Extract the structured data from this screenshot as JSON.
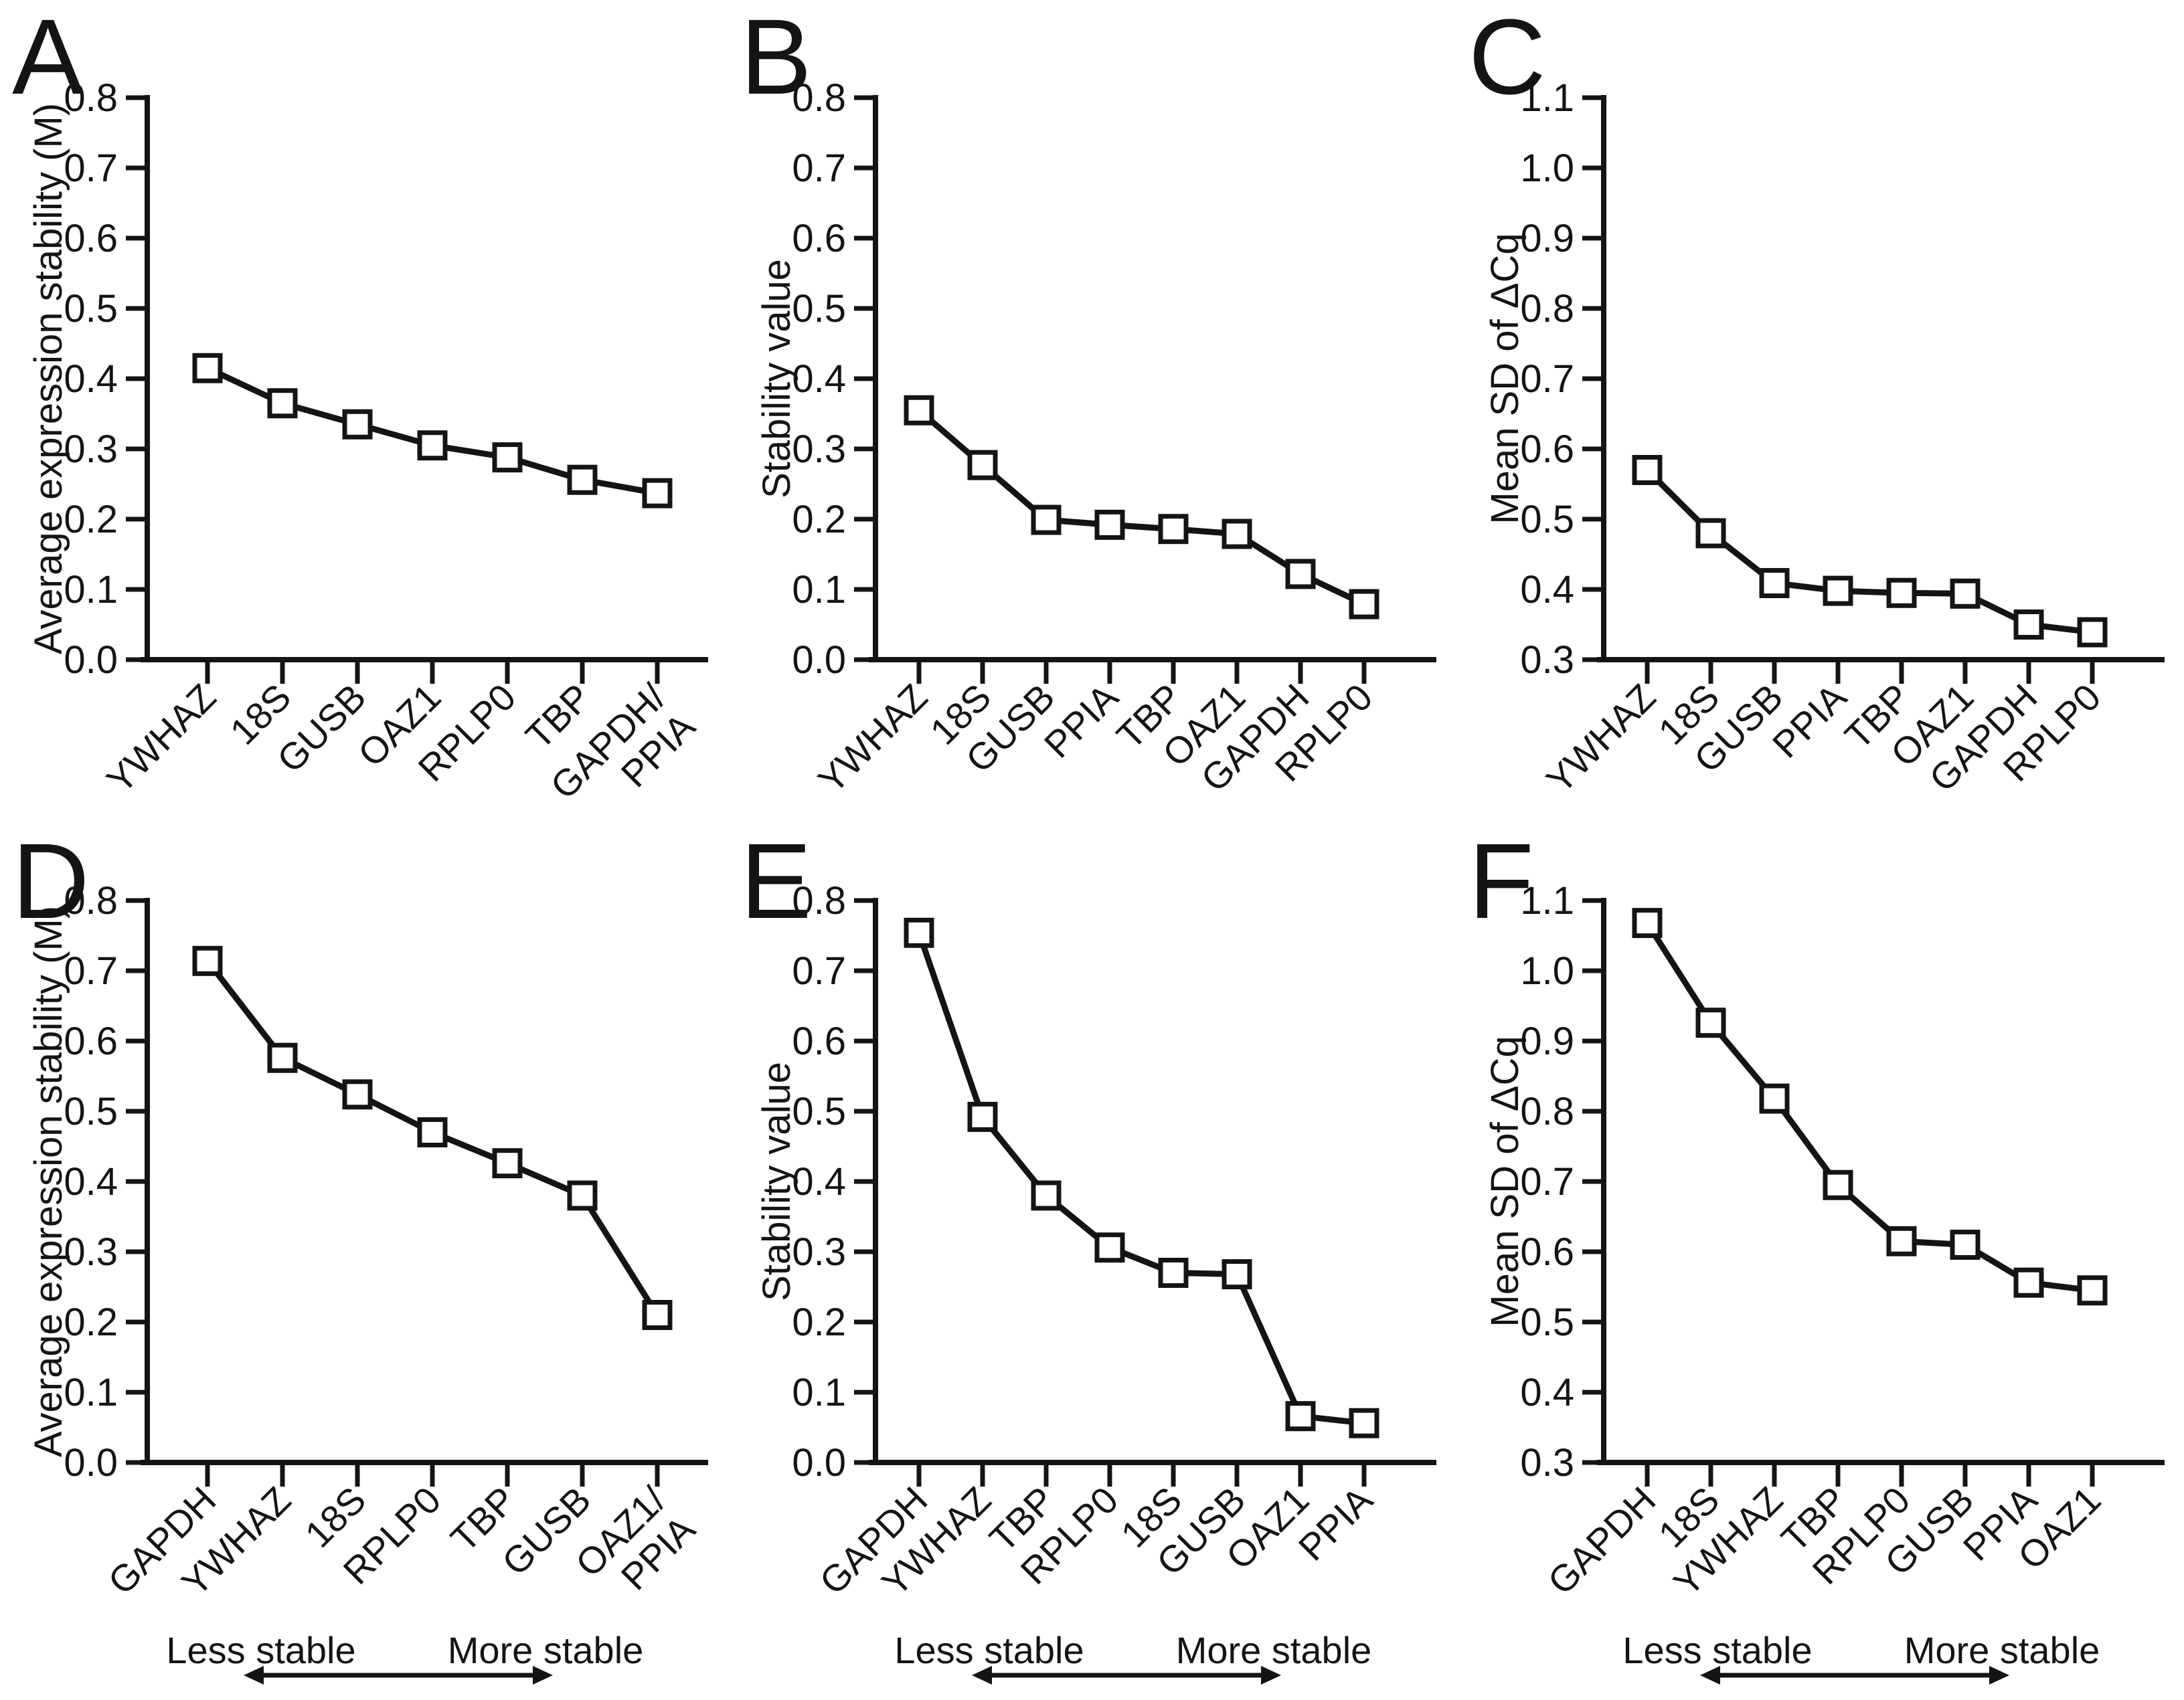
{
  "figure": {
    "background": "#ffffff",
    "ink": "#141414",
    "marker_style": "open-square",
    "marker_fill": "#ffffff"
  },
  "footer": {
    "less_label": "Less stable",
    "more_label": "More stable"
  },
  "chart_data": [
    {
      "panel_letter": "A",
      "type": "line",
      "row": 0,
      "col": 0,
      "ylabel": "Average expression stability (M)",
      "xlabel": "",
      "ylim": [
        0.0,
        0.8
      ],
      "ytick_step": 0.1,
      "ytick_labels": [
        "0.8",
        "0.7",
        "0.6",
        "0.5",
        "0.4",
        "0.3",
        "0.2",
        "0.1",
        "0.0"
      ],
      "categories": [
        "YWHAZ",
        "18S",
        "GUSB",
        "OAZ1",
        "RPLP0",
        "TBP",
        "GAPDH/\nPPIA"
      ],
      "values": [
        0.415,
        0.365,
        0.335,
        0.305,
        0.288,
        0.256,
        0.237
      ],
      "grid": false,
      "legend": null,
      "stability_arrow": false
    },
    {
      "panel_letter": "B",
      "type": "line",
      "row": 0,
      "col": 1,
      "ylabel": "Stability value",
      "xlabel": "",
      "ylim": [
        0.0,
        0.8
      ],
      "ytick_step": 0.1,
      "ytick_labels": [
        "0.8",
        "0.7",
        "0.6",
        "0.5",
        "0.4",
        "0.3",
        "0.2",
        "0.1",
        "0.0"
      ],
      "categories": [
        "YWHAZ",
        "18S",
        "GUSB",
        "PPIA",
        "TBP",
        "OAZ1",
        "GAPDH",
        "RPLP0"
      ],
      "values": [
        0.355,
        0.277,
        0.199,
        0.192,
        0.186,
        0.179,
        0.122,
        0.079
      ],
      "grid": false,
      "legend": null,
      "stability_arrow": false
    },
    {
      "panel_letter": "C",
      "type": "line",
      "row": 0,
      "col": 2,
      "ylabel": "Mean SD of ΔCq",
      "xlabel": "",
      "ylim": [
        0.3,
        1.1
      ],
      "ytick_step": 0.1,
      "ytick_labels": [
        "1.1",
        "1.0",
        "0.9",
        "0.8",
        "0.7",
        "0.6",
        "0.5",
        "0.4",
        "0.3"
      ],
      "categories": [
        "YWHAZ",
        "18S",
        "GUSB",
        "PPIA",
        "TBP",
        "OAZ1",
        "GAPDH",
        "RPLP0"
      ],
      "values": [
        0.57,
        0.48,
        0.409,
        0.398,
        0.395,
        0.394,
        0.35,
        0.339
      ],
      "grid": false,
      "legend": null,
      "stability_arrow": false
    },
    {
      "panel_letter": "D",
      "type": "line",
      "row": 1,
      "col": 0,
      "ylabel": "Average expression stability (M)",
      "xlabel": "",
      "ylim": [
        0.0,
        0.8
      ],
      "ytick_step": 0.1,
      "ytick_labels": [
        "0.8",
        "0.7",
        "0.6",
        "0.5",
        "0.4",
        "0.3",
        "0.2",
        "0.1",
        "0.0"
      ],
      "categories": [
        "GAPDH",
        "YWHAZ",
        "18S",
        "RPLP0",
        "TBP",
        "GUSB",
        "OAZ1/\nPPIA"
      ],
      "values": [
        0.714,
        0.576,
        0.524,
        0.47,
        0.426,
        0.38,
        0.21
      ],
      "grid": false,
      "legend": null,
      "stability_arrow": true
    },
    {
      "panel_letter": "E",
      "type": "line",
      "row": 1,
      "col": 1,
      "ylabel": "Stability value",
      "xlabel": "",
      "ylim": [
        0.0,
        0.8
      ],
      "ytick_step": 0.1,
      "ytick_labels": [
        "0.8",
        "0.7",
        "0.6",
        "0.5",
        "0.4",
        "0.3",
        "0.2",
        "0.1",
        "0.0"
      ],
      "categories": [
        "GAPDH",
        "YWHAZ",
        "TBP",
        "RPLP0",
        "18S",
        "GUSB",
        "OAZ1",
        "PPIA"
      ],
      "values": [
        0.754,
        0.492,
        0.38,
        0.306,
        0.27,
        0.268,
        0.066,
        0.056
      ],
      "grid": false,
      "legend": null,
      "stability_arrow": true
    },
    {
      "panel_letter": "F",
      "type": "line",
      "row": 1,
      "col": 2,
      "ylabel": "Mean SD of ΔCq",
      "xlabel": "",
      "ylim": [
        0.3,
        1.1
      ],
      "ytick_step": 0.1,
      "ytick_labels": [
        "1.1",
        "1.0",
        "0.9",
        "0.8",
        "0.7",
        "0.6",
        "0.5",
        "0.4",
        "0.3"
      ],
      "categories": [
        "GAPDH",
        "18S",
        "YWHAZ",
        "TBP",
        "RPLP0",
        "GUSB",
        "PPIA",
        "OAZ1"
      ],
      "values": [
        1.068,
        0.926,
        0.818,
        0.695,
        0.615,
        0.61,
        0.556,
        0.545
      ],
      "grid": false,
      "legend": null,
      "stability_arrow": true
    }
  ]
}
